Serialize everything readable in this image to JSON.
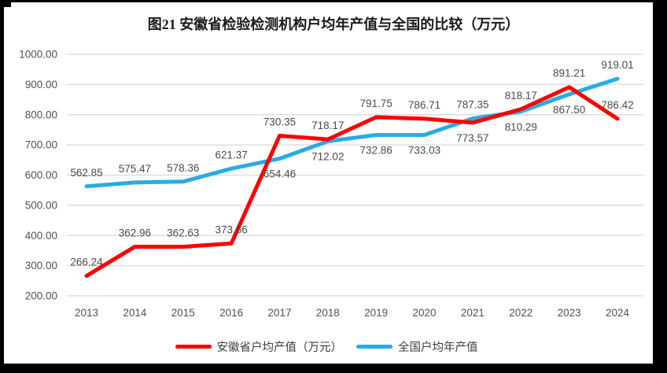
{
  "chart_data": {
    "type": "line",
    "title": "图21 安徽省检验检测机构户均年产值与全国的比较（万元）",
    "categories": [
      "2013",
      "2014",
      "2015",
      "2016",
      "2017",
      "2018",
      "2019",
      "2020",
      "2021",
      "2022",
      "2023",
      "2024"
    ],
    "yticks": [
      "1000.00",
      "900.00",
      "800.00",
      "700.00",
      "600.00",
      "500.00",
      "400.00",
      "300.00",
      "200.00"
    ],
    "ylim": [
      200,
      1000
    ],
    "ytick_step": 100,
    "grid": "horizontal-only",
    "legend_position": "bottom-center",
    "gridline_color": "#d9d9d9",
    "text_color": "#505050",
    "series": [
      {
        "name": "安徽省户均产值（万元）",
        "color": "#fe0000",
        "values": [
          266.24,
          362.96,
          362.63,
          373.66,
          730.35,
          718.17,
          791.75,
          786.71,
          773.57,
          818.17,
          891.21,
          786.42
        ],
        "labels": [
          "266.24",
          "362.96",
          "362.63",
          "373.66",
          "730.35",
          "718.17",
          "791.75",
          "786.71",
          "773.57",
          "818.17",
          "891.21",
          "786.42"
        ],
        "label_positions": [
          "above",
          "above",
          "above",
          "above",
          "above",
          "above",
          "above",
          "above",
          "below",
          "above",
          "above",
          "above"
        ]
      },
      {
        "name": "全国户均年产值",
        "color": "#29abe2",
        "values": [
          562.85,
          575.47,
          578.36,
          621.37,
          654.46,
          712.02,
          732.86,
          733.03,
          787.35,
          810.29,
          867.5,
          919.01
        ],
        "labels": [
          "562.85",
          "575.47",
          "578.36",
          "621.37",
          "654.46",
          "712.02",
          "732.86",
          "733.03",
          "787.35",
          "810.29",
          "867.50",
          "919.01"
        ],
        "label_positions": [
          "above",
          "above",
          "above",
          "above",
          "below",
          "below",
          "below",
          "below",
          "above",
          "below",
          "below",
          "above"
        ]
      }
    ]
  }
}
